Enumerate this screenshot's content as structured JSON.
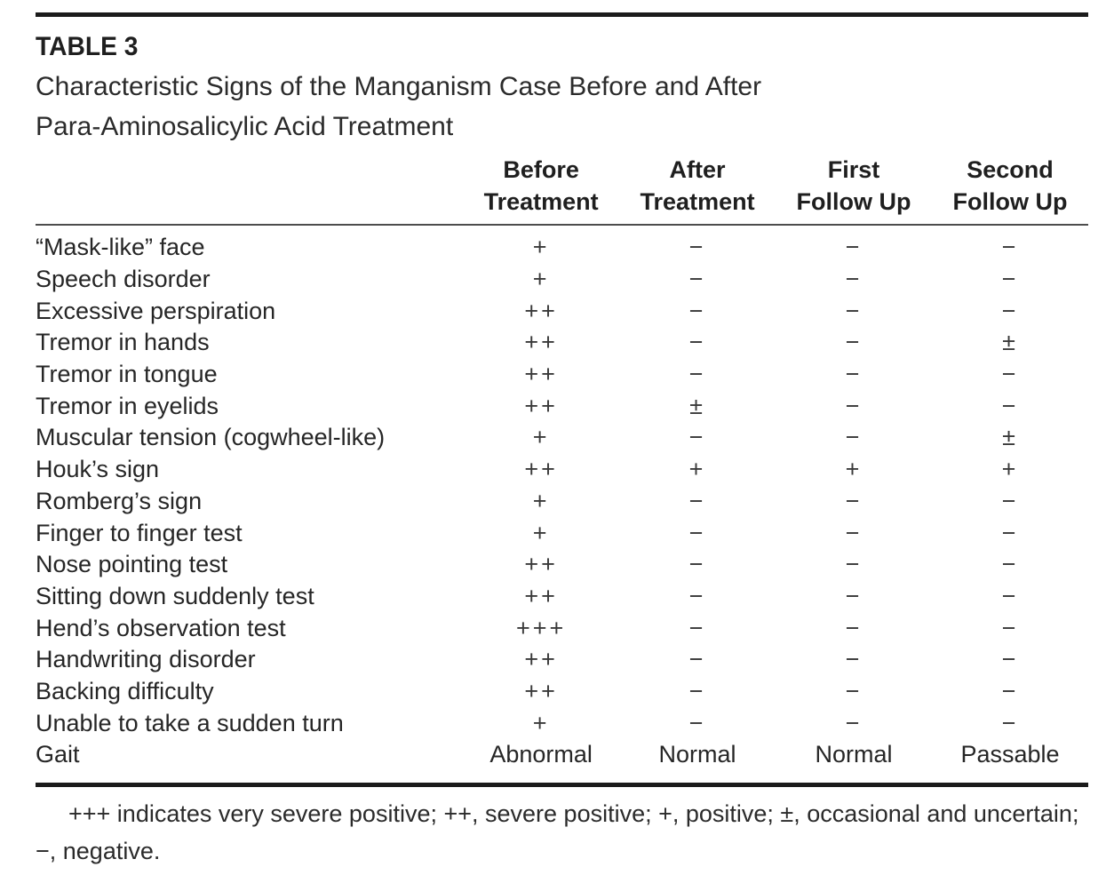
{
  "table": {
    "label": "TABLE 3",
    "title_line1": "Characteristic Signs of the Manganism Case Before and After",
    "title_line2": "Para-Aminosalicylic Acid Treatment",
    "columns": [
      {
        "line1": "Before",
        "line2": "Treatment"
      },
      {
        "line1": "After",
        "line2": "Treatment"
      },
      {
        "line1": "First",
        "line2": "Follow Up"
      },
      {
        "line1": "Second",
        "line2": "Follow Up"
      }
    ],
    "rows": [
      {
        "sign": "“Mask-like” face",
        "values": [
          "+",
          "−",
          "−",
          "−"
        ]
      },
      {
        "sign": "Speech disorder",
        "values": [
          "+",
          "−",
          "−",
          "−"
        ]
      },
      {
        "sign": "Excessive perspiration",
        "values": [
          "++",
          "−",
          "−",
          "−"
        ]
      },
      {
        "sign": "Tremor in hands",
        "values": [
          "++",
          "−",
          "−",
          "±"
        ]
      },
      {
        "sign": "Tremor in tongue",
        "values": [
          "++",
          "−",
          "−",
          "−"
        ]
      },
      {
        "sign": "Tremor in eyelids",
        "values": [
          "++",
          "±",
          "−",
          "−"
        ]
      },
      {
        "sign": "Muscular tension (cogwheel-like)",
        "values": [
          "+",
          "−",
          "−",
          "±"
        ]
      },
      {
        "sign": "Houk’s sign",
        "values": [
          "++",
          "+",
          "+",
          "+"
        ]
      },
      {
        "sign": "Romberg’s sign",
        "values": [
          "+",
          "−",
          "−",
          "−"
        ]
      },
      {
        "sign": "Finger to finger test",
        "values": [
          "+",
          "−",
          "−",
          "−"
        ]
      },
      {
        "sign": "Nose pointing test",
        "values": [
          "++",
          "−",
          "−",
          "−"
        ]
      },
      {
        "sign": "Sitting down suddenly test",
        "values": [
          "++",
          "−",
          "−",
          "−"
        ]
      },
      {
        "sign": "Hend’s observation test",
        "values": [
          "+++",
          "−",
          "−",
          "−"
        ]
      },
      {
        "sign": "Handwriting disorder",
        "values": [
          "++",
          "−",
          "−",
          "−"
        ]
      },
      {
        "sign": "Backing difficulty",
        "values": [
          "++",
          "−",
          "−",
          "−"
        ]
      },
      {
        "sign": "Unable to take a sudden turn",
        "values": [
          "+",
          "−",
          "−",
          "−"
        ]
      },
      {
        "sign": "Gait",
        "values": [
          "Abnormal",
          "Normal",
          "Normal",
          "Passable"
        ]
      }
    ],
    "footnote": "+++ indicates very severe positive; ++, severe positive; +, positive; ±, occasional and uncertain; −, negative."
  },
  "colors": {
    "text": "#242424",
    "rule_thick": "#1b1b1b",
    "rule_thin": "#4d4d4d",
    "background": "#ffffff"
  }
}
